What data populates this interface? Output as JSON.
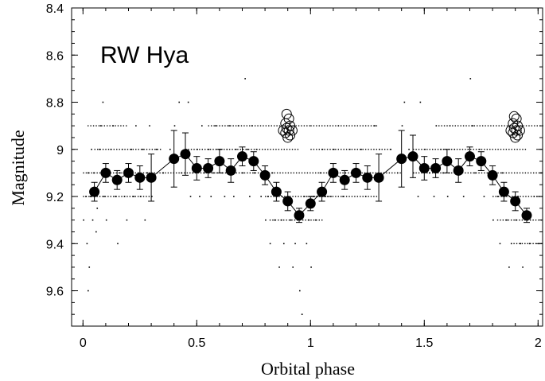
{
  "chart_data": {
    "type": "scatter",
    "title": "RW Hya",
    "xlabel": "Orbital phase",
    "ylabel": "Magnitude",
    "xlim": [
      -0.05,
      2.02
    ],
    "ylim": [
      8.4,
      9.75
    ],
    "y_inverted": true,
    "grid": false,
    "x_ticks": [
      {
        "v": 0,
        "label": "0"
      },
      {
        "v": 0.5,
        "label": "0.5"
      },
      {
        "v": 1,
        "label": "1"
      },
      {
        "v": 1.5,
        "label": "1.5"
      },
      {
        "v": 2,
        "label": "2"
      }
    ],
    "y_ticks": [
      {
        "v": 8.4,
        "label": "8.4"
      },
      {
        "v": 8.6,
        "label": "8.6"
      },
      {
        "v": 8.8,
        "label": "8.8"
      },
      {
        "v": 9.0,
        "label": "9"
      },
      {
        "v": 9.2,
        "label": "9.2"
      },
      {
        "v": 9.4,
        "label": "9.4"
      },
      {
        "v": 9.6,
        "label": "9.6"
      }
    ],
    "series": [
      {
        "kind": "binned_mean",
        "marker": "filled-circle",
        "connected": true,
        "points": [
          {
            "x": 0.05,
            "y": 9.18,
            "err": 0.04
          },
          {
            "x": 0.1,
            "y": 9.1,
            "err": 0.04
          },
          {
            "x": 0.15,
            "y": 9.13,
            "err": 0.04
          },
          {
            "x": 0.2,
            "y": 9.1,
            "err": 0.04
          },
          {
            "x": 0.25,
            "y": 9.12,
            "err": 0.05
          },
          {
            "x": 0.3,
            "y": 9.12,
            "err": 0.1
          },
          {
            "x": 0.4,
            "y": 9.04,
            "err": 0.12
          },
          {
            "x": 0.45,
            "y": 9.02,
            "err": 0.09
          },
          {
            "x": 0.5,
            "y": 9.08,
            "err": 0.05
          },
          {
            "x": 0.55,
            "y": 9.08,
            "err": 0.04
          },
          {
            "x": 0.6,
            "y": 9.05,
            "err": 0.05
          },
          {
            "x": 0.65,
            "y": 9.09,
            "err": 0.05
          },
          {
            "x": 0.7,
            "y": 9.03,
            "err": 0.04
          },
          {
            "x": 0.75,
            "y": 9.05,
            "err": 0.04
          },
          {
            "x": 0.8,
            "y": 9.11,
            "err": 0.04
          },
          {
            "x": 0.85,
            "y": 9.18,
            "err": 0.04
          },
          {
            "x": 0.9,
            "y": 9.22,
            "err": 0.04
          },
          {
            "x": 0.95,
            "y": 9.28,
            "err": 0.03
          },
          {
            "x": 1.0,
            "y": 9.23,
            "err": 0.03
          },
          {
            "x": 1.05,
            "y": 9.18,
            "err": 0.04
          },
          {
            "x": 1.1,
            "y": 9.1,
            "err": 0.04
          },
          {
            "x": 1.15,
            "y": 9.13,
            "err": 0.04
          },
          {
            "x": 1.2,
            "y": 9.1,
            "err": 0.04
          },
          {
            "x": 1.25,
            "y": 9.12,
            "err": 0.05
          },
          {
            "x": 1.3,
            "y": 9.12,
            "err": 0.1
          },
          {
            "x": 1.4,
            "y": 9.04,
            "err": 0.12
          },
          {
            "x": 1.45,
            "y": 9.03,
            "err": 0.09
          },
          {
            "x": 1.5,
            "y": 9.08,
            "err": 0.05
          },
          {
            "x": 1.55,
            "y": 9.08,
            "err": 0.04
          },
          {
            "x": 1.6,
            "y": 9.05,
            "err": 0.05
          },
          {
            "x": 1.65,
            "y": 9.09,
            "err": 0.05
          },
          {
            "x": 1.7,
            "y": 9.03,
            "err": 0.04
          },
          {
            "x": 1.75,
            "y": 9.05,
            "err": 0.04
          },
          {
            "x": 1.8,
            "y": 9.11,
            "err": 0.04
          },
          {
            "x": 1.85,
            "y": 9.18,
            "err": 0.04
          },
          {
            "x": 1.9,
            "y": 9.22,
            "err": 0.04
          },
          {
            "x": 1.95,
            "y": 9.28,
            "err": 0.03
          }
        ]
      },
      {
        "kind": "outliers",
        "marker": "open-circle",
        "points": [
          {
            "x": 0.895,
            "y": 8.85
          },
          {
            "x": 0.905,
            "y": 8.87
          },
          {
            "x": 0.89,
            "y": 8.89
          },
          {
            "x": 0.91,
            "y": 8.9
          },
          {
            "x": 0.895,
            "y": 8.91
          },
          {
            "x": 0.905,
            "y": 8.92
          },
          {
            "x": 0.89,
            "y": 8.93
          },
          {
            "x": 0.91,
            "y": 8.94
          },
          {
            "x": 0.9,
            "y": 8.95
          },
          {
            "x": 0.88,
            "y": 8.92
          },
          {
            "x": 0.92,
            "y": 8.92
          },
          {
            "x": 1.895,
            "y": 8.86
          },
          {
            "x": 1.905,
            "y": 8.87
          },
          {
            "x": 1.89,
            "y": 8.89
          },
          {
            "x": 1.91,
            "y": 8.9
          },
          {
            "x": 1.895,
            "y": 8.91
          },
          {
            "x": 1.905,
            "y": 8.92
          },
          {
            "x": 1.89,
            "y": 8.93
          },
          {
            "x": 1.91,
            "y": 8.94
          },
          {
            "x": 1.9,
            "y": 8.95
          },
          {
            "x": 1.88,
            "y": 8.92
          },
          {
            "x": 1.92,
            "y": 8.92
          }
        ]
      },
      {
        "kind": "individual_observations",
        "marker": "dot",
        "levels": [
          8.8,
          8.9,
          9.0,
          9.1,
          9.2,
          9.3,
          9.4,
          9.5,
          9.6,
          9.7
        ],
        "points": [
          [
            0.0,
            9.3
          ],
          [
            0.01,
            9.2
          ],
          [
            0.015,
            9.4
          ],
          [
            0.02,
            9.6
          ],
          [
            0.02,
            9.1
          ],
          [
            0.025,
            9.5
          ],
          [
            0.03,
            9.2
          ],
          [
            0.035,
            9.0
          ],
          [
            0.04,
            9.3
          ],
          [
            0.045,
            9.1
          ],
          [
            0.05,
            9.2
          ],
          [
            0.055,
            9.35
          ],
          [
            0.06,
            9.25
          ],
          [
            0.07,
            9.0
          ],
          [
            0.075,
            8.9
          ],
          [
            0.08,
            9.1
          ],
          [
            0.085,
            8.8
          ],
          [
            0.09,
            9.2
          ],
          [
            0.1,
            9.3
          ],
          [
            0.11,
            9.1
          ],
          [
            0.12,
            9.0
          ],
          [
            0.13,
            8.9
          ],
          [
            0.14,
            9.2
          ],
          [
            0.15,
            9.4
          ],
          [
            0.16,
            9.1
          ],
          [
            0.17,
            9.0
          ],
          [
            0.18,
            9.2
          ],
          [
            0.19,
            9.3
          ],
          [
            0.2,
            9.1
          ],
          [
            0.21,
            9.0
          ],
          [
            0.22,
            9.2
          ],
          [
            0.23,
            8.9
          ],
          [
            0.24,
            9.1
          ],
          [
            0.25,
            9.2
          ],
          [
            0.26,
            9.0
          ],
          [
            0.27,
            9.3
          ],
          [
            0.28,
            9.1
          ],
          [
            0.29,
            8.9
          ],
          [
            0.3,
            9.2
          ],
          [
            0.32,
            9.0
          ],
          [
            0.35,
            9.1
          ],
          [
            0.38,
            9.0
          ],
          [
            0.4,
            8.9
          ],
          [
            0.42,
            8.8
          ],
          [
            0.43,
            9.1
          ],
          [
            0.45,
            9.0
          ],
          [
            0.46,
            8.8
          ],
          [
            0.47,
            9.2
          ],
          [
            0.48,
            9.1
          ],
          [
            0.5,
            9.0
          ],
          [
            0.51,
            9.2
          ],
          [
            0.52,
            8.9
          ],
          [
            0.53,
            9.1
          ],
          [
            0.55,
            9.0
          ],
          [
            0.56,
            9.2
          ],
          [
            0.57,
            9.1
          ],
          [
            0.58,
            8.9
          ],
          [
            0.6,
            9.0
          ],
          [
            0.61,
            9.1
          ],
          [
            0.62,
            9.2
          ],
          [
            0.63,
            9.0
          ],
          [
            0.64,
            8.9
          ],
          [
            0.65,
            9.1
          ],
          [
            0.66,
            9.2
          ],
          [
            0.67,
            9.0
          ],
          [
            0.68,
            8.9
          ],
          [
            0.7,
            9.1
          ],
          [
            0.71,
            8.7
          ],
          [
            0.72,
            9.0
          ],
          [
            0.73,
            9.2
          ],
          [
            0.74,
            8.9
          ],
          [
            0.75,
            9.1
          ],
          [
            0.76,
            9.0
          ],
          [
            0.78,
            9.2
          ],
          [
            0.79,
            9.1
          ],
          [
            0.8,
            9.3
          ],
          [
            0.81,
            9.2
          ],
          [
            0.82,
            9.4
          ],
          [
            0.83,
            9.1
          ],
          [
            0.84,
            9.3
          ],
          [
            0.85,
            9.2
          ],
          [
            0.86,
            9.5
          ],
          [
            0.87,
            9.3
          ],
          [
            0.88,
            9.4
          ],
          [
            0.9,
            9.2
          ],
          [
            0.91,
            9.3
          ],
          [
            0.92,
            9.5
          ],
          [
            0.93,
            9.4
          ],
          [
            0.94,
            9.3
          ],
          [
            0.95,
            9.6
          ],
          [
            0.96,
            9.7
          ],
          [
            0.97,
            9.2
          ],
          [
            0.98,
            9.4
          ],
          [
            0.99,
            9.3
          ],
          [
            1.0,
            9.5
          ],
          [
            1.01,
            9.2
          ],
          [
            1.02,
            9.3
          ],
          [
            1.04,
            9.1
          ],
          [
            1.05,
            9.0
          ],
          [
            1.06,
            9.2
          ],
          [
            1.08,
            9.1
          ],
          [
            1.1,
            9.0
          ],
          [
            1.12,
            8.9
          ],
          [
            1.14,
            9.2
          ],
          [
            1.15,
            9.1
          ],
          [
            1.17,
            9.0
          ],
          [
            1.2,
            9.1
          ],
          [
            1.22,
            9.0
          ],
          [
            1.24,
            9.2
          ],
          [
            1.26,
            9.1
          ],
          [
            1.28,
            8.9
          ],
          [
            1.3,
            9.0
          ],
          [
            1.32,
            9.1
          ],
          [
            1.35,
            9.0
          ],
          [
            1.38,
            9.1
          ],
          [
            1.4,
            8.9
          ],
          [
            1.41,
            8.8
          ],
          [
            1.43,
            9.0
          ],
          [
            1.45,
            9.1
          ],
          [
            1.47,
            9.2
          ],
          [
            1.48,
            8.8
          ],
          [
            1.5,
            9.0
          ],
          [
            1.52,
            9.1
          ],
          [
            1.54,
            9.2
          ],
          [
            1.55,
            8.9
          ],
          [
            1.57,
            9.0
          ],
          [
            1.58,
            9.1
          ],
          [
            1.6,
            9.2
          ],
          [
            1.61,
            8.9
          ],
          [
            1.63,
            9.0
          ],
          [
            1.65,
            9.1
          ],
          [
            1.67,
            9.2
          ],
          [
            1.69,
            9.0
          ],
          [
            1.7,
            8.7
          ],
          [
            1.71,
            8.9
          ],
          [
            1.72,
            9.1
          ],
          [
            1.74,
            9.0
          ],
          [
            1.76,
            9.2
          ],
          [
            1.78,
            9.1
          ],
          [
            1.8,
            9.3
          ],
          [
            1.82,
            9.2
          ],
          [
            1.83,
            9.4
          ],
          [
            1.84,
            9.1
          ],
          [
            1.86,
            9.3
          ],
          [
            1.87,
            9.5
          ],
          [
            1.88,
            9.4
          ],
          [
            1.9,
            9.3
          ],
          [
            1.91,
            9.2
          ],
          [
            1.92,
            9.4
          ],
          [
            1.93,
            9.5
          ],
          [
            1.95,
            9.3
          ],
          [
            1.96,
            9.4
          ],
          [
            1.98,
            9.2
          ],
          [
            2.0,
            9.4
          ],
          [
            2.01,
            9.1
          ]
        ],
        "bands": [
          {
            "y": 8.9,
            "from": 0.02,
            "to": 0.2
          },
          {
            "y": 9.0,
            "from": 0.05,
            "to": 0.35
          },
          {
            "y": 9.1,
            "from": 0.0,
            "to": 0.6
          },
          {
            "y": 9.2,
            "from": 0.0,
            "to": 0.3
          },
          {
            "y": 9.0,
            "from": 0.45,
            "to": 0.95
          },
          {
            "y": 8.9,
            "from": 0.55,
            "to": 1.0
          },
          {
            "y": 9.1,
            "from": 0.6,
            "to": 1.4
          },
          {
            "y": 9.2,
            "from": 0.8,
            "to": 1.1
          },
          {
            "y": 9.3,
            "from": 0.82,
            "to": 1.05
          },
          {
            "y": 9.0,
            "from": 1.0,
            "to": 1.35
          },
          {
            "y": 8.9,
            "from": 1.0,
            "to": 1.3
          },
          {
            "y": 9.2,
            "from": 1.0,
            "to": 1.3
          },
          {
            "y": 9.0,
            "from": 1.45,
            "to": 1.95
          },
          {
            "y": 8.9,
            "from": 1.55,
            "to": 2.02
          },
          {
            "y": 9.1,
            "from": 1.45,
            "to": 2.02
          },
          {
            "y": 9.2,
            "from": 1.8,
            "to": 2.02
          },
          {
            "y": 9.3,
            "from": 1.82,
            "to": 2.02
          },
          {
            "y": 9.4,
            "from": 1.88,
            "to": 2.02
          }
        ]
      }
    ]
  }
}
